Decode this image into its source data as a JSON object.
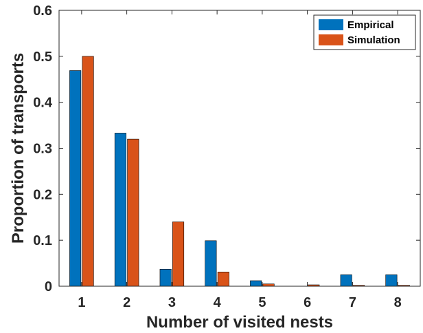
{
  "chart_data": {
    "type": "bar",
    "categories": [
      "1",
      "2",
      "3",
      "4",
      "5",
      "6",
      "7",
      "8"
    ],
    "series": [
      {
        "name": "Empirical",
        "color": "#0072BD",
        "values": [
          0.469,
          0.333,
          0.037,
          0.099,
          0.012,
          0.0,
          0.025,
          0.025
        ]
      },
      {
        "name": "Simulation",
        "color": "#D95319",
        "values": [
          0.5,
          0.32,
          0.14,
          0.031,
          0.005,
          0.003,
          0.002,
          0.002
        ]
      }
    ],
    "xlabel": "Number of visited nests",
    "ylabel": "Proportion of transports",
    "ylim": [
      0,
      0.6
    ],
    "yticks": [
      "0",
      "0.1",
      "0.2",
      "0.3",
      "0.4",
      "0.5",
      "0.6"
    ],
    "legend_position": "top-right",
    "grid": false
  }
}
